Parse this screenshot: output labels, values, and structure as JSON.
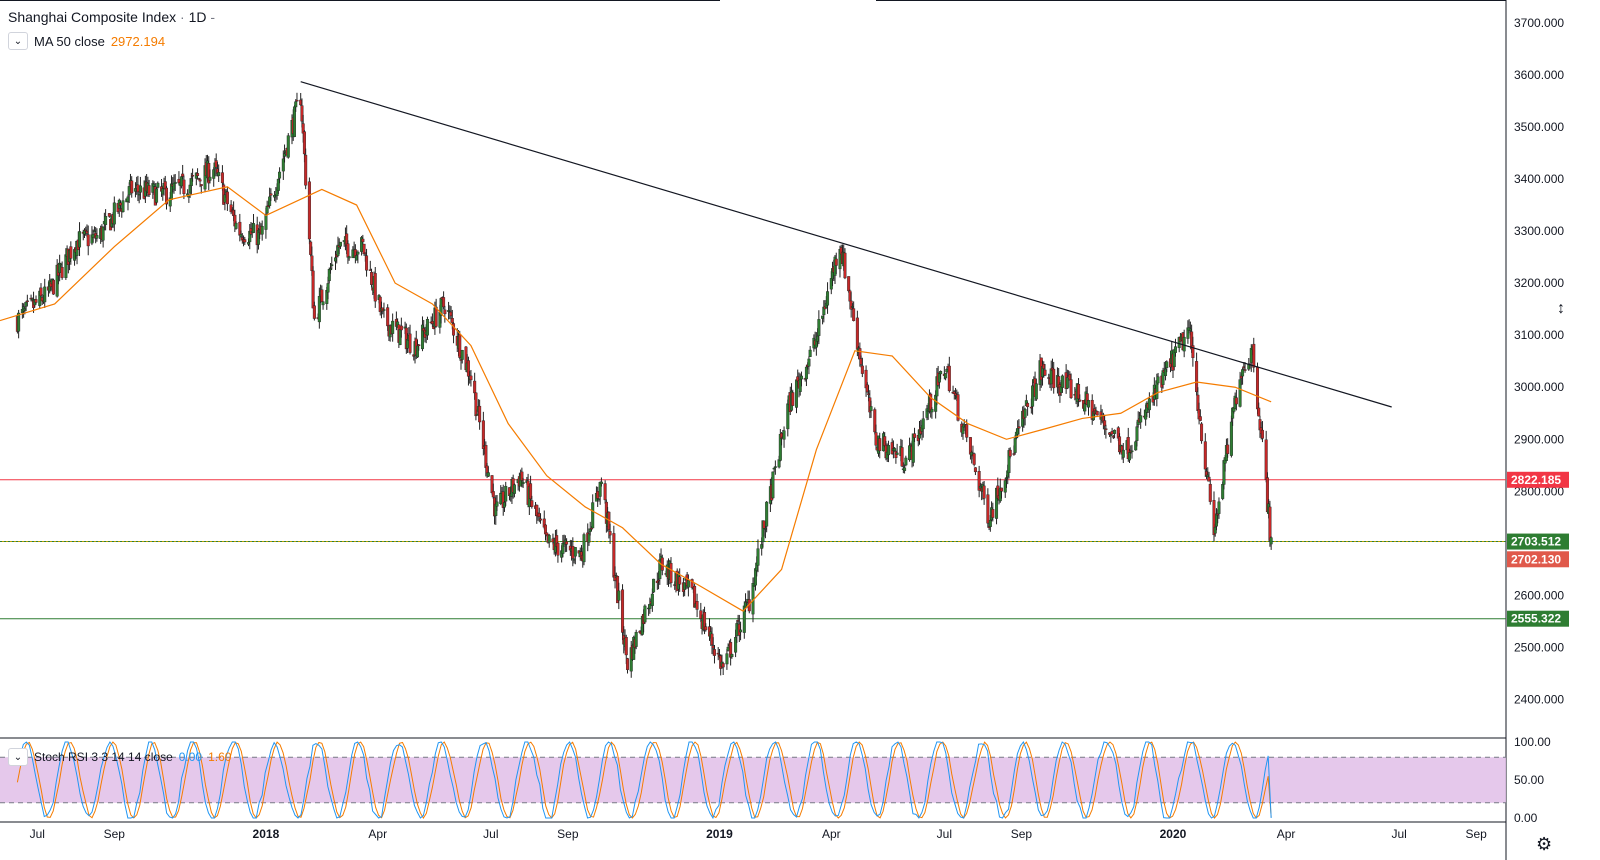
{
  "header": {
    "title": "Shanghai Composite Index",
    "interval": "1D",
    "ma_label": "MA 50 close",
    "ma_value": "2972.194",
    "rsi_label": "Stoch RSI 3 3 14 14 close",
    "rsi_k": "0.00",
    "rsi_d": "1.60"
  },
  "chart_data": [
    {
      "type": "candlestick",
      "title": "Shanghai Composite Index · 1D",
      "x_ticks": [
        "Jul",
        "Sep",
        "2018",
        "Apr",
        "Jul",
        "Sep",
        "2019",
        "Apr",
        "Jul",
        "Sep",
        "2020",
        "Apr",
        "Jul",
        "Sep"
      ],
      "y_ticks": [
        "3700.000",
        "3600.000",
        "3500.000",
        "3400.000",
        "3300.000",
        "3200.000",
        "3100.000",
        "3000.000",
        "2900.000",
        "2800.000",
        "2600.000",
        "2500.000",
        "2400.000"
      ],
      "ylim": [
        2330,
        3740
      ],
      "up_color": "#2e7d32",
      "down_color": "#c62828",
      "price_path": [
        {
          "date": "2017-06-15",
          "price": 3130
        },
        {
          "date": "2017-07-10",
          "price": 3180
        },
        {
          "date": "2017-08-01",
          "price": 3280
        },
        {
          "date": "2017-08-20",
          "price": 3290
        },
        {
          "date": "2017-09-15",
          "price": 3380
        },
        {
          "date": "2017-10-10",
          "price": 3370
        },
        {
          "date": "2017-11-01",
          "price": 3390
        },
        {
          "date": "2017-11-20",
          "price": 3420
        },
        {
          "date": "2017-12-10",
          "price": 3300
        },
        {
          "date": "2017-12-28",
          "price": 3290
        },
        {
          "date": "2018-01-29",
          "price": 3560
        },
        {
          "date": "2018-02-09",
          "price": 3130
        },
        {
          "date": "2018-02-28",
          "price": 3270
        },
        {
          "date": "2018-03-20",
          "price": 3270
        },
        {
          "date": "2018-04-05",
          "price": 3130
        },
        {
          "date": "2018-05-01",
          "price": 3080
        },
        {
          "date": "2018-05-25",
          "price": 3160
        },
        {
          "date": "2018-06-15",
          "price": 3020
        },
        {
          "date": "2018-07-05",
          "price": 2760
        },
        {
          "date": "2018-07-25",
          "price": 2830
        },
        {
          "date": "2018-08-15",
          "price": 2700
        },
        {
          "date": "2018-09-12",
          "price": 2680
        },
        {
          "date": "2018-09-28",
          "price": 2820
        },
        {
          "date": "2018-10-19",
          "price": 2470
        },
        {
          "date": "2018-11-15",
          "price": 2660
        },
        {
          "date": "2018-12-10",
          "price": 2600
        },
        {
          "date": "2019-01-04",
          "price": 2460
        },
        {
          "date": "2019-01-25",
          "price": 2590
        },
        {
          "date": "2019-02-25",
          "price": 2960
        },
        {
          "date": "2019-03-20",
          "price": 3090
        },
        {
          "date": "2019-04-08",
          "price": 3280
        },
        {
          "date": "2019-05-06",
          "price": 2900
        },
        {
          "date": "2019-06-01",
          "price": 2860
        },
        {
          "date": "2019-07-02",
          "price": 3040
        },
        {
          "date": "2019-08-06",
          "price": 2750
        },
        {
          "date": "2019-09-16",
          "price": 3030
        },
        {
          "date": "2019-10-15",
          "price": 2990
        },
        {
          "date": "2019-11-25",
          "price": 2880
        },
        {
          "date": "2019-12-31",
          "price": 3050
        },
        {
          "date": "2020-01-14",
          "price": 3110
        },
        {
          "date": "2020-02-03",
          "price": 2720
        },
        {
          "date": "2020-02-24",
          "price": 3030
        },
        {
          "date": "2020-03-05",
          "price": 3070
        },
        {
          "date": "2020-03-13",
          "price": 2890
        },
        {
          "date": "2020-03-20",
          "price": 2700
        }
      ],
      "ma50": [
        {
          "date": "2017-06-01",
          "value": 3128
        },
        {
          "date": "2017-07-15",
          "value": 3160
        },
        {
          "date": "2017-09-01",
          "value": 3270
        },
        {
          "date": "2017-10-15",
          "value": 3360
        },
        {
          "date": "2017-12-01",
          "value": 3385
        },
        {
          "date": "2018-01-01",
          "value": 3330
        },
        {
          "date": "2018-02-15",
          "value": 3380
        },
        {
          "date": "2018-03-15",
          "value": 3350
        },
        {
          "date": "2018-04-15",
          "value": 3200
        },
        {
          "date": "2018-05-15",
          "value": 3160
        },
        {
          "date": "2018-06-15",
          "value": 3080
        },
        {
          "date": "2018-07-15",
          "value": 2930
        },
        {
          "date": "2018-08-15",
          "value": 2830
        },
        {
          "date": "2018-09-15",
          "value": 2770
        },
        {
          "date": "2018-10-15",
          "value": 2730
        },
        {
          "date": "2018-11-15",
          "value": 2660
        },
        {
          "date": "2018-12-15",
          "value": 2620
        },
        {
          "date": "2019-01-20",
          "value": 2570
        },
        {
          "date": "2019-02-20",
          "value": 2650
        },
        {
          "date": "2019-03-20",
          "value": 2880
        },
        {
          "date": "2019-04-20",
          "value": 3070
        },
        {
          "date": "2019-05-20",
          "value": 3060
        },
        {
          "date": "2019-06-20",
          "value": 2980
        },
        {
          "date": "2019-07-20",
          "value": 2930
        },
        {
          "date": "2019-08-20",
          "value": 2900
        },
        {
          "date": "2019-09-20",
          "value": 2920
        },
        {
          "date": "2019-10-20",
          "value": 2940
        },
        {
          "date": "2019-11-20",
          "value": 2950
        },
        {
          "date": "2019-12-20",
          "value": 2990
        },
        {
          "date": "2020-01-20",
          "value": 3010
        },
        {
          "date": "2020-02-20",
          "value": 3000
        },
        {
          "date": "2020-03-20",
          "value": 2972
        }
      ],
      "trendline": [
        {
          "date": "2018-01-29",
          "value": 3587
        },
        {
          "date": "2020-06-25",
          "value": 2962
        }
      ],
      "horizontal_levels": [
        {
          "label": "2822.185",
          "value": 2822.185,
          "color": "#f23645"
        },
        {
          "label": "2703.512",
          "value": 2703.512,
          "color": "#2e7d32"
        },
        {
          "label": "2555.322",
          "value": 2555.322,
          "color": "#2e7d32"
        }
      ],
      "last_price_label": {
        "label": "2702.130",
        "value": 2702.13,
        "color": "#e0594b"
      }
    },
    {
      "type": "line",
      "title": "Stoch RSI 3 3 14 14 close",
      "y_ticks": [
        "100.00",
        "50.00",
        "0.00"
      ],
      "ylim": [
        0,
        100
      ],
      "band": [
        20,
        80
      ],
      "series": [
        {
          "color": "#2196f3",
          "last": 0.0
        },
        {
          "color": "#f57c00",
          "last": 1.6
        }
      ]
    }
  ]
}
